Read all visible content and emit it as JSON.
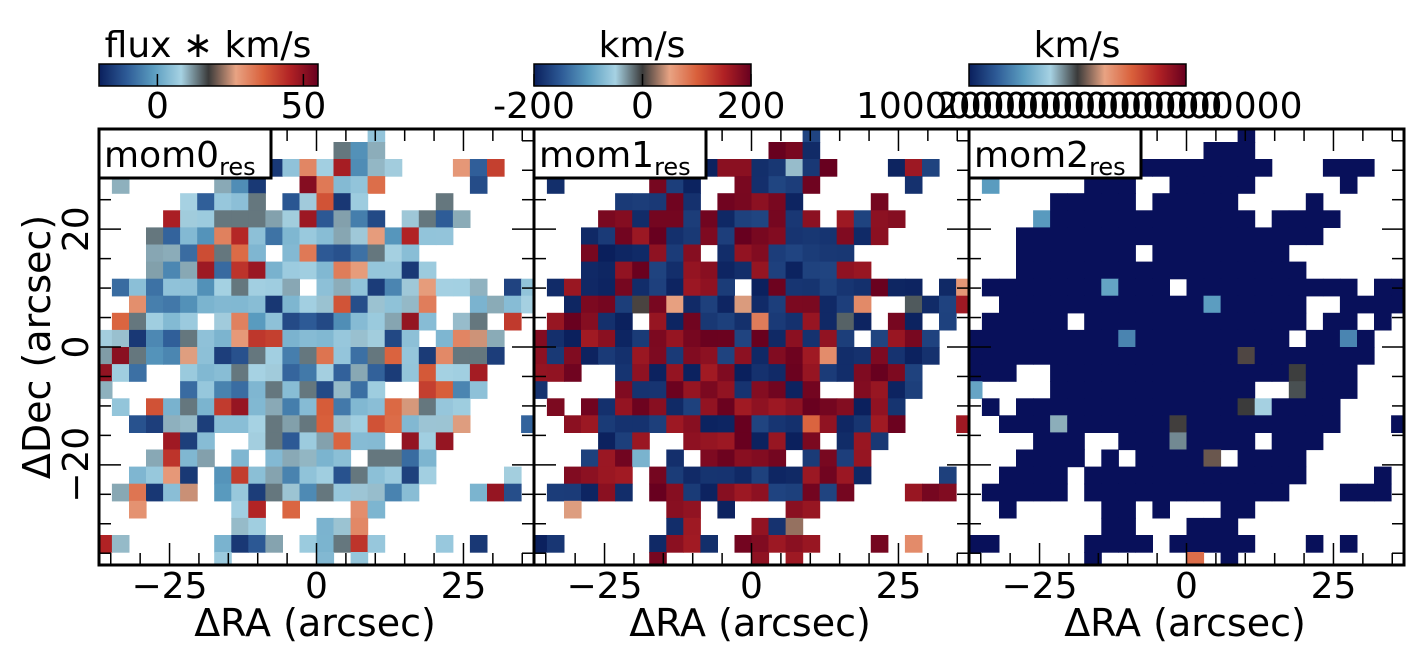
{
  "figure": {
    "xlabel": "ΔRA (arcsec)",
    "ylabel": "ΔDec (arcsec)"
  },
  "colormap": [
    "#0a1f5c",
    "#2d5a96",
    "#5b9dc0",
    "#a6d2e3",
    "#3a3a3a",
    "#e8a383",
    "#d9603b",
    "#b02124",
    "#67001f"
  ],
  "mask_color": "#08105a",
  "chart_data": [
    {
      "type": "heatmap",
      "panel_label": "mom0",
      "panel_label_sub": "res",
      "colorbar_label": "flux ∗ km/s",
      "colorbar_ticks": [
        "0",
        "50"
      ],
      "colorbar_tick_values": [
        0,
        50
      ],
      "colorbar_range": [
        -20,
        55
      ],
      "xlim": [
        -37,
        37
      ],
      "ylim": [
        -37,
        37
      ],
      "xticks": [
        -25,
        0,
        25
      ],
      "xtick_labels": [
        "−25",
        "0",
        "25"
      ],
      "yticks": [
        -20,
        0,
        20
      ],
      "ytick_labels": [
        "−20",
        "0",
        "20"
      ],
      "pixel_pattern": "mixed"
    },
    {
      "type": "heatmap",
      "panel_label": "mom1",
      "panel_label_sub": "res",
      "colorbar_label": "km/s",
      "colorbar_ticks": [
        "-200",
        "0",
        "200"
      ],
      "colorbar_tick_values": [
        -200,
        0,
        200
      ],
      "colorbar_range": [
        -200,
        200
      ],
      "xlim": [
        -37,
        37
      ],
      "ylim": [
        -37,
        37
      ],
      "xticks": [
        -25,
        0,
        25
      ],
      "xtick_labels": [
        "−25",
        "0",
        "25"
      ],
      "pixel_pattern": "extremes"
    },
    {
      "type": "heatmap",
      "panel_label": "mom2",
      "panel_label_sub": "res",
      "colorbar_label": "km/s",
      "colorbar_ticks": [
        "1000000000000000",
        "2000000000000000"
      ],
      "colorbar_range": [
        0,
        1
      ],
      "xlim": [
        -37,
        37
      ],
      "ylim": [
        -37,
        37
      ],
      "xticks": [
        -25,
        0,
        25
      ],
      "xtick_labels": [
        "−25",
        "0",
        "25"
      ],
      "pixel_pattern": "low"
    }
  ]
}
